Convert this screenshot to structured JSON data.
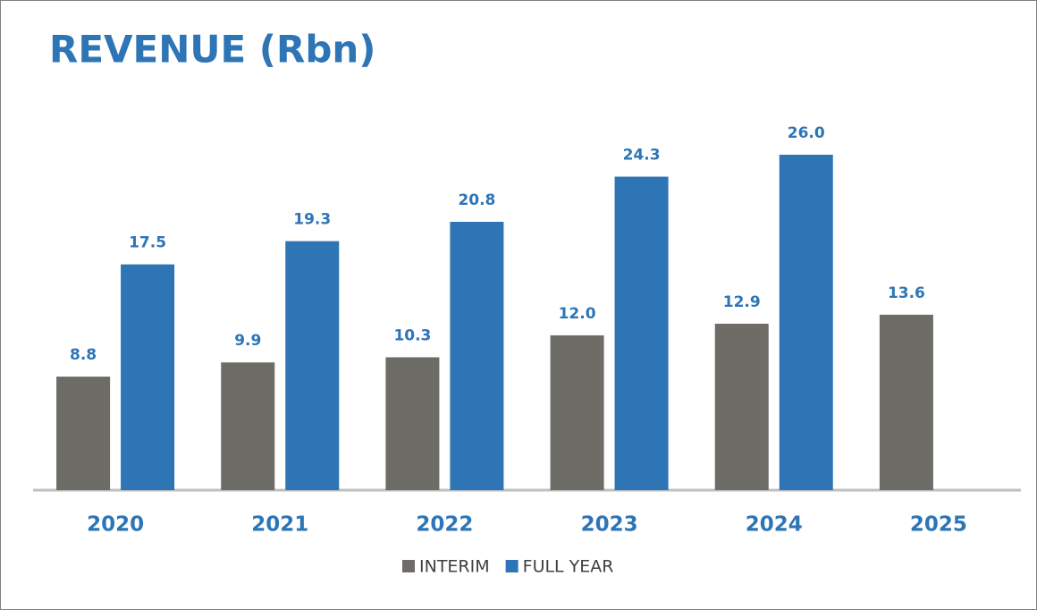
{
  "chart_data": {
    "type": "bar",
    "title": "REVENUE (Rbn)",
    "categories": [
      "2020",
      "2021",
      "2022",
      "2023",
      "2024",
      "2025"
    ],
    "series": [
      {
        "name": "INTERIM",
        "color": "#6d6c67",
        "values": [
          8.8,
          9.9,
          10.3,
          12.0,
          12.9,
          13.6
        ],
        "value_labels": [
          "8.8",
          "9.9",
          "10.3",
          "12.0",
          "12.9",
          "13.6"
        ]
      },
      {
        "name": "FULL YEAR",
        "color": "#2e75b6",
        "values": [
          17.5,
          19.3,
          20.8,
          24.3,
          26.0,
          null
        ],
        "value_labels": [
          "17.5",
          "19.3",
          "20.8",
          "24.3",
          "26.0",
          null
        ]
      }
    ],
    "legend": "bottom"
  }
}
